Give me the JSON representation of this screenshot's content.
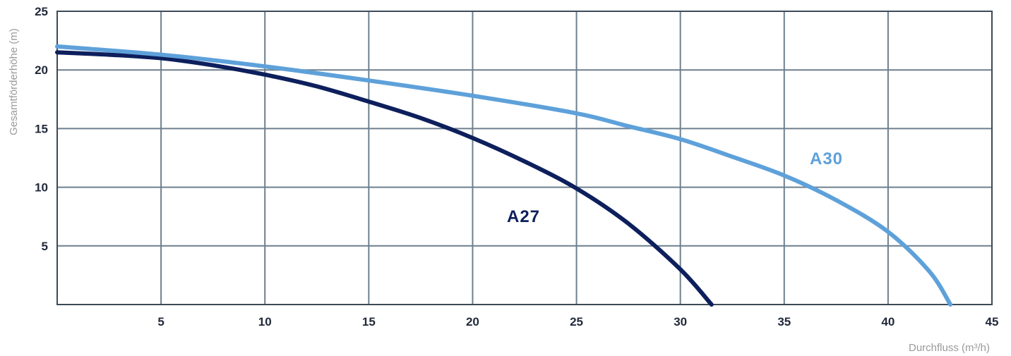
{
  "chart_data": {
    "type": "line",
    "xlabel": "Durchfluss (m³/h)",
    "ylabel": "Gesamtförderhöhe (m)",
    "xlim": [
      0,
      45
    ],
    "ylim": [
      0,
      25
    ],
    "x_ticks": [
      5,
      10,
      15,
      20,
      25,
      30,
      35,
      40,
      45
    ],
    "y_ticks": [
      5,
      10,
      15,
      20,
      25
    ],
    "grid": true,
    "series": [
      {
        "name": "A27",
        "color": "#0d1f5c",
        "x": [
          0,
          2.5,
          5,
          7.5,
          10,
          12.5,
          15,
          17.5,
          20,
          22.5,
          25,
          27.5,
          30,
          31.5
        ],
        "y": [
          21.5,
          21.3,
          21.0,
          20.4,
          19.6,
          18.6,
          17.3,
          15.9,
          14.2,
          12.2,
          9.9,
          6.9,
          3.0,
          0
        ]
      },
      {
        "name": "A30",
        "color": "#5ea1da",
        "x": [
          0,
          5,
          10,
          15,
          20,
          25,
          27.5,
          30,
          32.5,
          35,
          37.5,
          40,
          42,
          43
        ],
        "y": [
          22.0,
          21.3,
          20.3,
          19.1,
          17.8,
          16.3,
          15.2,
          14.1,
          12.6,
          11.0,
          8.9,
          6.2,
          2.8,
          0
        ]
      }
    ]
  }
}
